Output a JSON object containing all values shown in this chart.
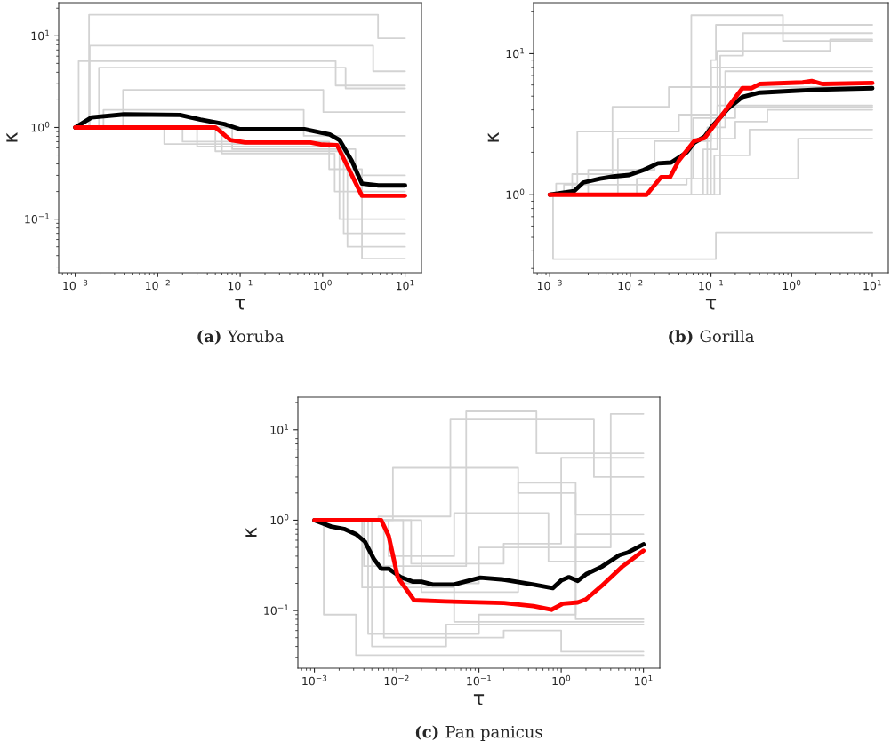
{
  "chart_data": [
    {
      "type": "line",
      "title": "(a) Yoruba",
      "xlabel": "τ",
      "ylabel": "κ",
      "log": "xy",
      "grid": false,
      "xlim": [
        0.00063,
        15.8
      ],
      "ylim": [
        0.026,
        23
      ],
      "xticks": [
        {
          "value": 0.001,
          "label": "10$^{−3}$"
        },
        {
          "value": 0.01,
          "label": "10$^{−2}$"
        },
        {
          "value": 0.1,
          "label": "10$^{−1}$"
        },
        {
          "value": 1,
          "label": "10$^{0}$"
        },
        {
          "value": 10,
          "label": "10$^{1}$"
        }
      ],
      "yticks": [
        {
          "value": 0.1,
          "label": "10$^{−1}$"
        },
        {
          "value": 1,
          "label": "10$^{0}$"
        },
        {
          "value": 10,
          "label": "10$^{1}$"
        }
      ],
      "series": [
        {
          "type": "step",
          "color": "#d3d3d3",
          "x": [
            0.001,
            0.00147,
            4.7,
            10
          ],
          "values": [
            1,
            17,
            9.4,
            9.4
          ]
        },
        {
          "type": "step",
          "color": "#d3d3d3",
          "x": [
            0.001,
            0.0015,
            4.1,
            10
          ],
          "values": [
            1,
            7.8,
            4.1,
            4.1
          ]
        },
        {
          "type": "step",
          "color": "#d3d3d3",
          "x": [
            0.001,
            0.0011,
            1.44,
            10
          ],
          "values": [
            1,
            5.3,
            2.87,
            2.87
          ]
        },
        {
          "type": "step",
          "color": "#d3d3d3",
          "x": [
            0.001,
            0.00194,
            1.9,
            10
          ],
          "values": [
            1,
            4.5,
            2.67,
            2.67
          ]
        },
        {
          "type": "step",
          "color": "#d3d3d3",
          "x": [
            0.001,
            0.0038,
            1.02,
            10
          ],
          "values": [
            1,
            2.57,
            1.47,
            1.47
          ]
        },
        {
          "type": "step",
          "color": "#d3d3d3",
          "x": [
            0.001,
            0.0022,
            0.59,
            10
          ],
          "values": [
            1,
            1.56,
            0.81,
            0.81
          ]
        },
        {
          "type": "step",
          "color": "#d3d3d3",
          "x": [
            0.001,
            0.03,
            1.6,
            10
          ],
          "values": [
            1,
            0.62,
            0.1,
            0.1
          ]
        },
        {
          "type": "step",
          "color": "#d3d3d3",
          "x": [
            0.001,
            0.05,
            2.0,
            10
          ],
          "values": [
            1,
            0.55,
            0.05,
            0.05
          ]
        },
        {
          "type": "step",
          "color": "#d3d3d3",
          "x": [
            0.001,
            0.02,
            1.2,
            3.0,
            10
          ],
          "values": [
            1,
            0.7,
            0.35,
            0.037,
            0.037
          ]
        },
        {
          "type": "step",
          "color": "#d3d3d3",
          "x": [
            0.001,
            0.08,
            2.5,
            10
          ],
          "values": [
            1,
            0.58,
            0.3,
            0.3
          ]
        },
        {
          "type": "step",
          "color": "#d3d3d3",
          "x": [
            0.001,
            0.012,
            1.8,
            10
          ],
          "values": [
            1,
            0.66,
            0.07,
            0.07
          ]
        },
        {
          "type": "step",
          "color": "#d3d3d3",
          "x": [
            0.001,
            0.06,
            1.4,
            10
          ],
          "values": [
            1,
            0.52,
            0.2,
            0.2
          ]
        },
        {
          "color": "#000000",
          "x": [
            0.001,
            0.00158,
            0.0039,
            0.0186,
            0.033,
            0.064,
            0.098,
            0.6,
            1.22,
            1.6,
            2.26,
            3.0,
            4.75,
            10
          ],
          "values": [
            1,
            1.29,
            1.39,
            1.37,
            1.22,
            1.09,
            0.96,
            0.96,
            0.84,
            0.73,
            0.43,
            0.244,
            0.233,
            0.233
          ]
        },
        {
          "color": "#ff0000",
          "x": [
            0.001,
            0.05,
            0.076,
            0.115,
            0.71,
            0.99,
            1.5,
            3.0,
            10
          ],
          "values": [
            1,
            1,
            0.73,
            0.685,
            0.685,
            0.65,
            0.64,
            0.18,
            0.18
          ]
        }
      ]
    },
    {
      "type": "line",
      "title": "(b) Gorilla",
      "xlabel": "τ",
      "ylabel": "κ",
      "log": "xy",
      "grid": false,
      "xlim": [
        0.00063,
        15.8
      ],
      "ylim": [
        0.28,
        23
      ],
      "xticks": [
        {
          "value": 0.001,
          "label": "10$^{−3}$"
        },
        {
          "value": 0.01,
          "label": "10$^{−2}$"
        },
        {
          "value": 0.1,
          "label": "10$^{−1}$"
        },
        {
          "value": 1,
          "label": "10$^{0}$"
        },
        {
          "value": 10,
          "label": "10$^{1}$"
        }
      ],
      "yticks": [
        {
          "value": 1,
          "label": "10$^{0}$"
        },
        {
          "value": 10,
          "label": "10$^{1}$"
        }
      ],
      "series": [
        {
          "type": "step",
          "color": "#d3d3d3",
          "x": [
            0.001,
            0.0011,
            0.115,
            10
          ],
          "values": [
            1,
            0.35,
            0.54,
            0.54
          ]
        },
        {
          "type": "step",
          "color": "#d3d3d3",
          "x": [
            0.001,
            0.057,
            0.78,
            10
          ],
          "values": [
            1,
            18.7,
            12.3,
            12.3
          ]
        },
        {
          "type": "step",
          "color": "#d3d3d3",
          "x": [
            0.001,
            0.1,
            0.115,
            10
          ],
          "values": [
            1,
            9,
            16,
            16
          ]
        },
        {
          "type": "step",
          "color": "#d3d3d3",
          "x": [
            0.001,
            0.0019,
            0.006,
            0.03,
            10
          ],
          "values": [
            1,
            1.4,
            4.2,
            5.8,
            5.8
          ]
        },
        {
          "type": "step",
          "color": "#d3d3d3",
          "x": [
            0.001,
            0.003,
            0.02,
            0.1,
            10
          ],
          "values": [
            1,
            1.5,
            2.4,
            8,
            8
          ]
        },
        {
          "type": "step",
          "color": "#d3d3d3",
          "x": [
            0.001,
            0.012,
            0.06,
            0.2,
            10
          ],
          "values": [
            1,
            1.3,
            3.5,
            4.2,
            4.2
          ]
        },
        {
          "type": "step",
          "color": "#d3d3d3",
          "x": [
            0.001,
            0.0015,
            0.05,
            1.2,
            10
          ],
          "values": [
            1,
            1.18,
            1.3,
            2.5,
            2.5
          ]
        },
        {
          "type": "step",
          "color": "#d3d3d3",
          "x": [
            0.001,
            0.08,
            0.12,
            3,
            10
          ],
          "values": [
            1,
            2.1,
            10.5,
            12.6,
            12.6
          ]
        },
        {
          "type": "step",
          "color": "#d3d3d3",
          "x": [
            0.001,
            0.0012,
            0.0022,
            0.04,
            0.12,
            10
          ],
          "values": [
            1,
            1.2,
            2.8,
            3.7,
            4.3,
            4.3
          ]
        },
        {
          "type": "step",
          "color": "#d3d3d3",
          "x": [
            0.001,
            0.09,
            0.15,
            10
          ],
          "values": [
            1,
            3,
            7.5,
            7.5
          ]
        },
        {
          "type": "step",
          "color": "#d3d3d3",
          "x": [
            0.001,
            0.007,
            0.2,
            0.5,
            10
          ],
          "values": [
            1,
            2.5,
            3.3,
            4.0,
            4.0
          ]
        },
        {
          "type": "step",
          "color": "#d3d3d3",
          "x": [
            0.001,
            0.11,
            0.3,
            10
          ],
          "values": [
            1,
            1.9,
            2.9,
            2.9
          ]
        },
        {
          "type": "step",
          "color": "#d3d3d3",
          "x": [
            0.001,
            0.13,
            0.25,
            10
          ],
          "values": [
            1,
            9.7,
            14,
            14
          ]
        },
        {
          "color": "#000000",
          "x": [
            0.001,
            0.002,
            0.0026,
            0.0042,
            0.0064,
            0.0097,
            0.0147,
            0.022,
            0.032,
            0.04,
            0.05,
            0.062,
            0.083,
            0.107,
            0.162,
            0.245,
            0.4,
            0.91,
            2.1,
            10
          ],
          "values": [
            1,
            1.06,
            1.22,
            1.3,
            1.35,
            1.38,
            1.5,
            1.67,
            1.69,
            1.84,
            2.0,
            2.34,
            2.58,
            3.13,
            4.07,
            4.93,
            5.3,
            5.43,
            5.56,
            5.7
          ]
        },
        {
          "color": "#ff0000",
          "x": [
            0.001,
            0.0159,
            0.024,
            0.031,
            0.04,
            0.062,
            0.083,
            0.245,
            0.32,
            0.4,
            1.37,
            1.77,
            2.4,
            10
          ],
          "values": [
            1,
            1,
            1.33,
            1.33,
            1.75,
            2.4,
            2.52,
            5.7,
            5.7,
            6.1,
            6.26,
            6.4,
            6.1,
            6.2
          ]
        }
      ]
    },
    {
      "type": "line",
      "title": "(c) Pan panicus",
      "xlabel": "τ",
      "ylabel": "κ",
      "log": "xy",
      "grid": false,
      "xlim": [
        0.00063,
        15.8
      ],
      "ylim": [
        0.023,
        23
      ],
      "xticks": [
        {
          "value": 0.001,
          "label": "10$^{−3}$"
        },
        {
          "value": 0.01,
          "label": "10$^{−2}$"
        },
        {
          "value": 0.1,
          "label": "10$^{−1}$"
        },
        {
          "value": 1,
          "label": "10$^{0}$"
        },
        {
          "value": 10,
          "label": "10$^{1}$"
        }
      ],
      "yticks": [
        {
          "value": 0.1,
          "label": "10$^{−1}$"
        },
        {
          "value": 1,
          "label": "10$^{0}$"
        },
        {
          "value": 10,
          "label": "10$^{1}$"
        }
      ],
      "series": [
        {
          "type": "step",
          "color": "#d3d3d3",
          "x": [
            0.001,
            0.0013,
            0.0032,
            10
          ],
          "values": [
            1,
            0.09,
            0.032,
            0.032
          ]
        },
        {
          "type": "step",
          "color": "#d3d3d3",
          "x": [
            0.001,
            0.004,
            0.07,
            0.5,
            10
          ],
          "values": [
            1,
            0.31,
            16,
            5.5,
            5.5
          ]
        },
        {
          "type": "step",
          "color": "#d3d3d3",
          "x": [
            0.001,
            0.009,
            0.3,
            1.5,
            10
          ],
          "values": [
            1,
            3.8,
            2.0,
            1.15,
            1.15
          ]
        },
        {
          "type": "step",
          "color": "#d3d3d3",
          "x": [
            0.001,
            0.006,
            0.045,
            2.5,
            10
          ],
          "values": [
            1,
            1.1,
            13,
            3.0,
            3.0
          ]
        },
        {
          "type": "step",
          "color": "#d3d3d3",
          "x": [
            0.001,
            0.005,
            0.04,
            10
          ],
          "values": [
            1,
            0.04,
            0.07,
            0.07
          ]
        },
        {
          "type": "step",
          "color": "#d3d3d3",
          "x": [
            0.001,
            0.007,
            0.2,
            1.0,
            10
          ],
          "values": [
            1,
            0.05,
            0.06,
            0.035,
            0.035
          ]
        },
        {
          "type": "step",
          "color": "#d3d3d3",
          "x": [
            0.001,
            0.008,
            0.05,
            0.7,
            10
          ],
          "values": [
            1,
            0.4,
            1.2,
            0.35,
            0.35
          ]
        },
        {
          "type": "step",
          "color": "#d3d3d3",
          "x": [
            0.001,
            0.012,
            0.1,
            4.0,
            10
          ],
          "values": [
            1,
            0.2,
            0.5,
            15,
            15
          ]
        },
        {
          "type": "step",
          "color": "#d3d3d3",
          "x": [
            0.001,
            0.0045,
            0.1,
            1.5,
            10
          ],
          "values": [
            1,
            0.055,
            0.09,
            0.7,
            0.7
          ]
        },
        {
          "type": "step",
          "color": "#d3d3d3",
          "x": [
            0.001,
            0.02,
            0.3,
            1.5,
            10
          ],
          "values": [
            1,
            0.16,
            2.6,
            0.08,
            0.08
          ]
        },
        {
          "type": "step",
          "color": "#d3d3d3",
          "x": [
            0.001,
            0.0038,
            0.05,
            10
          ],
          "values": [
            1,
            0.18,
            0.075,
            0.075
          ]
        },
        {
          "type": "step",
          "color": "#d3d3d3",
          "x": [
            0.001,
            0.015,
            0.2,
            1.0,
            10
          ],
          "values": [
            1,
            0.33,
            0.55,
            4.9,
            4.9
          ]
        },
        {
          "color": "#000000",
          "x": [
            0.001,
            0.0016,
            0.0023,
            0.0032,
            0.0041,
            0.0053,
            0.0065,
            0.008,
            0.0112,
            0.0156,
            0.02,
            0.0275,
            0.0495,
            0.104,
            0.2,
            0.46,
            0.79,
            1.01,
            1.24,
            1.59,
            2.0,
            3.1,
            5.1,
            6.5,
            10
          ],
          "values": [
            1,
            0.85,
            0.8,
            0.7,
            0.58,
            0.37,
            0.29,
            0.29,
            0.234,
            0.209,
            0.209,
            0.194,
            0.194,
            0.231,
            0.22,
            0.194,
            0.177,
            0.217,
            0.234,
            0.213,
            0.252,
            0.305,
            0.41,
            0.44,
            0.54
          ]
        },
        {
          "color": "#ff0000",
          "x": [
            0.001,
            0.0065,
            0.008,
            0.0103,
            0.0163,
            0.0387,
            0.2,
            0.46,
            0.76,
            1.05,
            1.59,
            2.0,
            3.1,
            5.5,
            10
          ],
          "values": [
            1,
            1,
            0.67,
            0.234,
            0.13,
            0.126,
            0.121,
            0.112,
            0.102,
            0.119,
            0.123,
            0.133,
            0.187,
            0.305,
            0.46
          ]
        }
      ]
    }
  ]
}
